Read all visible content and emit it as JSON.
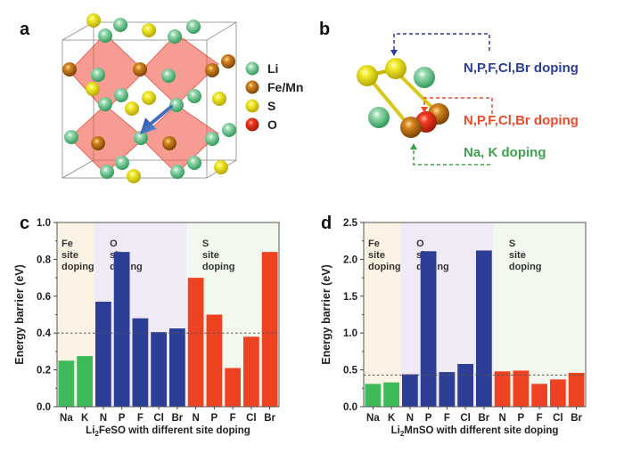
{
  "panels": {
    "a": {
      "label": "a",
      "legend": [
        {
          "name": "Li",
          "color": "#4dbb7a"
        },
        {
          "name": "Fe/Mn",
          "color": "#b8690f"
        },
        {
          "name": "S",
          "color": "#e8e020"
        },
        {
          "name": "O",
          "color": "#e8301c"
        }
      ]
    },
    "b": {
      "label": "b",
      "annotations": [
        {
          "text": "N,P,F,Cl,Br doping",
          "color": "#2c3d9a"
        },
        {
          "text": "N,P,F,Cl,Br doping",
          "color": "#ee4a2c"
        },
        {
          "text": "Na, K doping",
          "color": "#3fa04e"
        }
      ]
    }
  },
  "chart_data": [
    {
      "panel": "c",
      "type": "bar",
      "title": "",
      "xlabel_parts": [
        "Li",
        "2",
        "FeSO with different site doping"
      ],
      "ylabel": "Energy barrier (eV)",
      "ylim": [
        0.0,
        1.0
      ],
      "yticks": [
        "0.0",
        "0.2",
        "0.4",
        "0.6",
        "0.8",
        "1.0"
      ],
      "ytick_values": [
        0.0,
        0.2,
        0.4,
        0.6,
        0.8,
        1.0
      ],
      "categories": [
        "Na",
        "K",
        "N",
        "P",
        "F",
        "Cl",
        "Br",
        "N",
        "P",
        "F",
        "Cl",
        "Br"
      ],
      "values": [
        0.25,
        0.275,
        0.57,
        0.84,
        0.48,
        0.405,
        0.425,
        0.7,
        0.5,
        0.21,
        0.38,
        0.84
      ],
      "groups": [
        {
          "name": "Fe site doping",
          "lines": [
            "Fe",
            "site",
            "doping"
          ],
          "start": 0,
          "end": 2,
          "bar_color": "#3dba5a",
          "bg": "#fcf3e4"
        },
        {
          "name": "O site doping",
          "lines": [
            "O",
            "site",
            "doping"
          ],
          "start": 2,
          "end": 7,
          "bar_color": "#2c3e96",
          "bg": "#f0eaf6"
        },
        {
          "name": "S site doping",
          "lines": [
            "S",
            "site",
            "doping"
          ],
          "start": 7,
          "end": 12,
          "bar_color": "#ee4323",
          "bg": "#f3f8ee"
        }
      ],
      "reference_line": 0.4,
      "grid": false
    },
    {
      "panel": "d",
      "type": "bar",
      "title": "",
      "xlabel_parts": [
        "Li",
        "2",
        "MnSO with different site doping"
      ],
      "ylabel": "Energy barrier (eV)",
      "ylim": [
        0.0,
        2.5
      ],
      "yticks": [
        "0.0",
        "0.5",
        "1.0",
        "1.5",
        "2.0",
        "2.5"
      ],
      "ytick_values": [
        0.0,
        0.5,
        1.0,
        1.5,
        2.0,
        2.5
      ],
      "categories": [
        "Na",
        "K",
        "N",
        "P",
        "F",
        "Cl",
        "Br",
        "N",
        "P",
        "F",
        "Cl",
        "Br"
      ],
      "values": [
        0.31,
        0.33,
        0.44,
        2.11,
        0.47,
        0.58,
        2.12,
        0.48,
        0.49,
        0.31,
        0.37,
        0.46
      ],
      "groups": [
        {
          "name": "Fe site doping",
          "lines": [
            "Fe",
            "site",
            "doping"
          ],
          "start": 0,
          "end": 2,
          "bar_color": "#3dba5a",
          "bg": "#fcf3e4"
        },
        {
          "name": "O site doping",
          "lines": [
            "O",
            "site",
            "doping"
          ],
          "start": 2,
          "end": 7,
          "bar_color": "#2c3e96",
          "bg": "#f0eaf6"
        },
        {
          "name": "S site doping",
          "lines": [
            "S",
            "site",
            "doping"
          ],
          "start": 7,
          "end": 12,
          "bar_color": "#ee4323",
          "bg": "#f3f8ee"
        }
      ],
      "reference_line": 0.43,
      "grid": false
    }
  ]
}
